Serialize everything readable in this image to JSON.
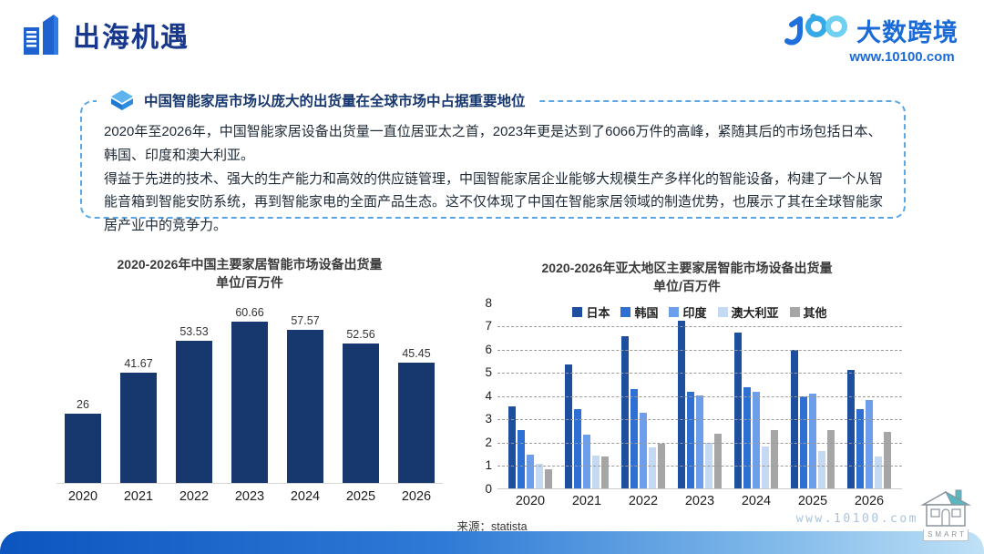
{
  "header": {
    "title": "出海机遇",
    "logo_text": "大数跨境",
    "logo_url": "www.10100.com"
  },
  "callout": {
    "title": "中国智能家居市场以庞大的出货量在全球市场中占据重要地位",
    "paragraphs": [
      "2020年至2026年，中国智能家居设备出货量一直位居亚太之首，2023年更是达到了6066万件的高峰，紧随其后的市场包括日本、韩国、印度和澳大利亚。",
      "得益于先进的技术、强大的生产能力和高效的供应链管理，中国智能家居企业能够大规模生产多样化的智能设备，构建了一个从智能音箱到智能安防系统，再到智能家电的全面产品生态。这不仅体现了中国在智能家居领域的制造优势，也展示了其在全球智能家居产业中的竞争力。"
    ]
  },
  "chart_data": [
    {
      "type": "bar",
      "title": "2020-2026年中国主要家居智能市场设备出货量",
      "subtitle": "单位/百万件",
      "categories": [
        "2020",
        "2021",
        "2022",
        "2023",
        "2024",
        "2025",
        "2026"
      ],
      "values": [
        26,
        41.67,
        53.53,
        60.66,
        57.57,
        52.56,
        45.45
      ],
      "bar_color": "#17386e",
      "ylim": [
        0,
        62
      ],
      "grid": false,
      "data_labels_shown": true
    },
    {
      "type": "bar",
      "title": "2020-2026年亚太地区主要家居智能市场设备出货量",
      "subtitle": "单位/百万件",
      "categories": [
        "2020",
        "2021",
        "2022",
        "2023",
        "2024",
        "2025",
        "2026"
      ],
      "series": [
        {
          "name": "日本",
          "color": "#1d4f9e",
          "values": [
            3.5,
            5.3,
            6.55,
            7.2,
            6.7,
            5.95,
            5.1
          ]
        },
        {
          "name": "韩国",
          "color": "#2d6fd3",
          "values": [
            2.5,
            3.4,
            4.25,
            4.15,
            4.35,
            3.95,
            3.4
          ]
        },
        {
          "name": "印度",
          "color": "#6d9eeb",
          "values": [
            1.45,
            2.3,
            3.25,
            4.0,
            4.15,
            4.05,
            3.8
          ]
        },
        {
          "name": "澳大利亚",
          "color": "#c5d9f2",
          "values": [
            1.05,
            1.4,
            1.75,
            1.95,
            1.8,
            1.6,
            1.35
          ]
        },
        {
          "name": "其他",
          "color": "#a6a6a6",
          "values": [
            0.8,
            1.35,
            1.9,
            2.35,
            2.5,
            2.5,
            2.4
          ]
        }
      ],
      "ylim": [
        0,
        8
      ],
      "yticks": [
        0,
        1,
        2,
        3,
        4,
        5,
        6,
        7,
        8
      ],
      "grid": true,
      "legend_position": "top"
    }
  ],
  "footer": {
    "source": "来源：statista",
    "watermark": "www.10100.com",
    "smart_label": "SMART"
  }
}
